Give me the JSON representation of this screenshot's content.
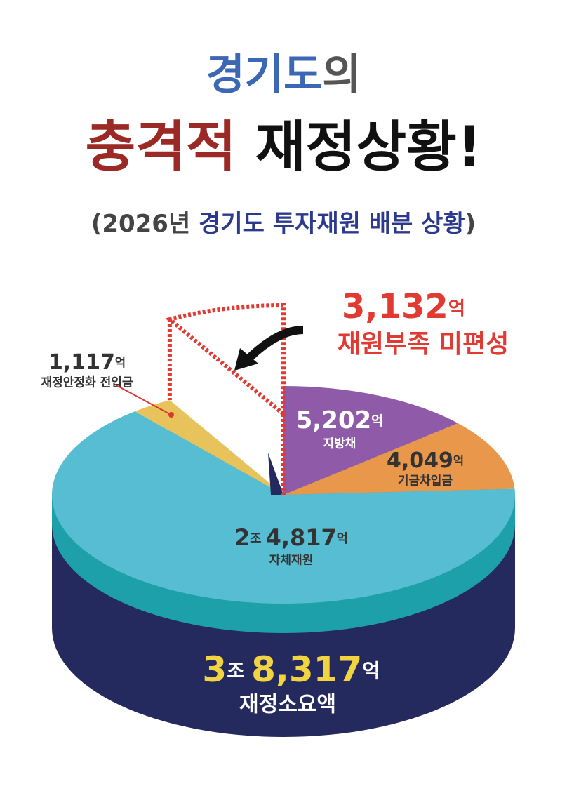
{
  "chart_data": {
    "type": "pie",
    "title_lines": [
      [
        {
          "text": "경기도",
          "color": "#3b67b4"
        },
        {
          "text": "의",
          "color": "#555555"
        }
      ],
      [
        {
          "text": "충격적",
          "color": "#9b2a26"
        },
        {
          "text": " 재정상황!",
          "color": "#111111"
        }
      ]
    ],
    "subtitle": [
      {
        "text": "(2026년 ",
        "color": "#444444"
      },
      {
        "text": "경기도 투자재원 배분 상황",
        "color": "#2b3a8c"
      },
      {
        "text": ")",
        "color": "#444444"
      }
    ],
    "categories": [
      "지방채",
      "기금차입금",
      "자체재원",
      "재정안정화 전입금",
      "재원부족 미편성"
    ],
    "values": [
      5202,
      4049,
      24817,
      1117,
      3132
    ],
    "value_labels": [
      "5,202억",
      "4,049억",
      "2조 4,817억",
      "1,117억",
      "3,132억"
    ],
    "colors": [
      "#8f5ba9",
      "#e9974b",
      "#56bdd3",
      "#e8c35c",
      "#e03a33"
    ],
    "exploded": 4,
    "total": {
      "value": 38317,
      "label": "3조 8,317억",
      "name": "재정소요액"
    }
  }
}
